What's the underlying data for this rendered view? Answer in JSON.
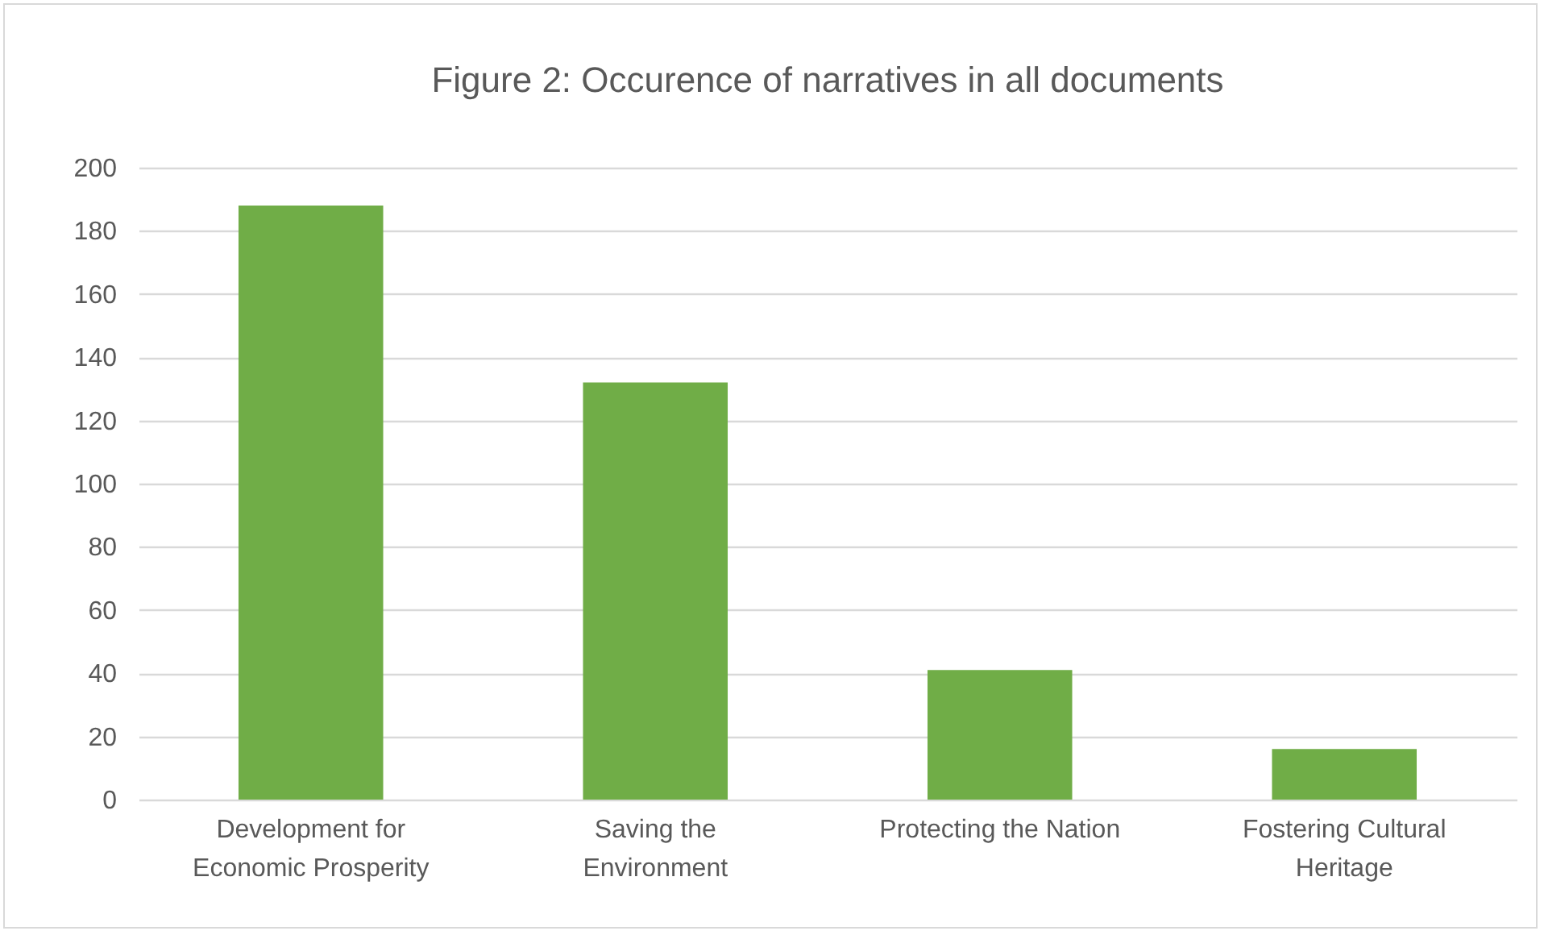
{
  "chart_data": {
    "type": "bar",
    "title": "Figure 2: Occurence of narratives in all documents",
    "categories": [
      "Development for Economic Prosperity",
      "Saving the Environment",
      "Protecting the Nation",
      "Fostering Cultural Heritage"
    ],
    "values": [
      188,
      132,
      41,
      16
    ],
    "color": "#70ad47",
    "ylim": [
      0,
      200
    ],
    "yticks": [
      0,
      20,
      40,
      60,
      80,
      100,
      120,
      140,
      160,
      180,
      200
    ],
    "grid": "y"
  }
}
